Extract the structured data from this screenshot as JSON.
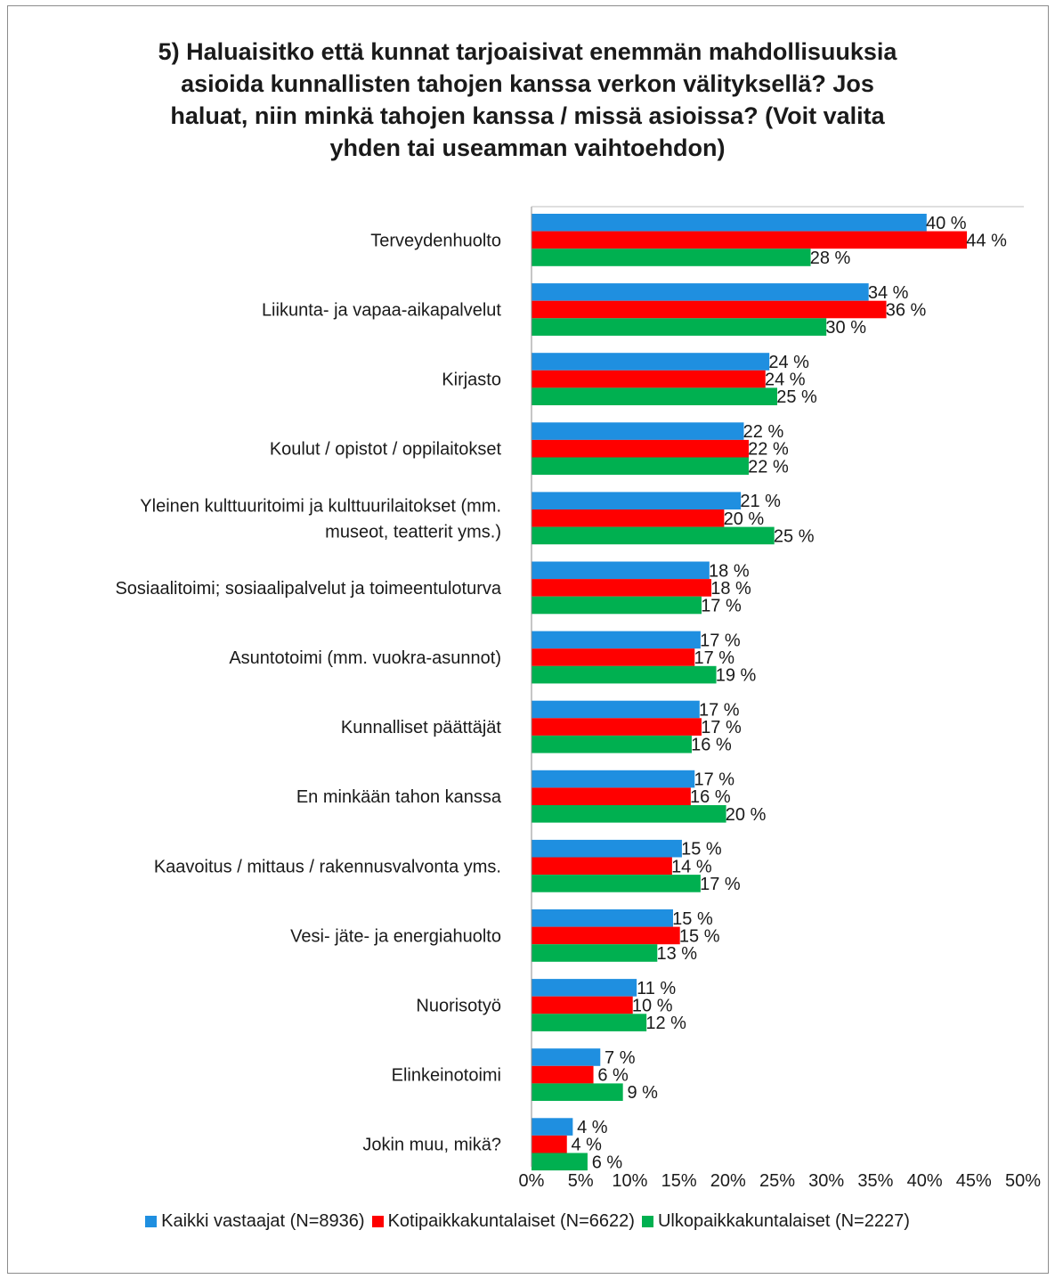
{
  "chart_data": {
    "type": "bar",
    "orientation": "horizontal",
    "title": "5) Haluaisitko että kunnat tarjoaisivat enemmän mahdollisuuksia asioida kunnallisten tahojen kanssa verkon välityksellä? Jos haluat, niin minkä tahojen kanssa / missä asioissa? (Voit valita yhden tai useamman vaihtoehdon)",
    "title_lines": [
      "5) Haluaisitko että kunnat tarjoaisivat enemmän mahdollisuuksia",
      "asioida kunnallisten tahojen kanssa verkon välityksellä? Jos",
      "haluat, niin minkä tahojen kanssa / missä asioissa? (Voit valita",
      "yhden tai useamman vaihtoehdon)"
    ],
    "categories": [
      [
        "Terveydenhuolto"
      ],
      [
        "Liikunta- ja vapaa-aikapalvelut"
      ],
      [
        "Kirjasto"
      ],
      [
        "Koulut / opistot / oppilaitokset"
      ],
      [
        "Yleinen kulttuuritoimi ja kulttuurilaitokset (mm.",
        "museot, teatterit yms.)"
      ],
      [
        "Sosiaalitoimi; sosiaalipalvelut ja toimeentuloturva"
      ],
      [
        "Asuntotoimi (mm. vuokra-asunnot)"
      ],
      [
        "Kunnalliset päättäjät"
      ],
      [
        "En minkään tahon kanssa"
      ],
      [
        "Kaavoitus / mittaus / rakennusvalvonta yms."
      ],
      [
        "Vesi- jäte- ja energiahuolto"
      ],
      [
        "Nuorisotyö"
      ],
      [
        "Elinkeinotoimi"
      ],
      [
        "Jokin muu, mikä?"
      ]
    ],
    "series": [
      {
        "name": "Kaikki vastaajat (N=8936)",
        "color": "#1f8fe0",
        "values": [
          40,
          34,
          24,
          22,
          21,
          18,
          17,
          17,
          17,
          15,
          15,
          11,
          7,
          4
        ],
        "labels": [
          "40 %",
          "34 %",
          "24 %",
          "22 %",
          "21 %",
          "18 %",
          "17 %",
          "17 %",
          "17 %",
          "15 %",
          "15 %",
          "11 %",
          "7 %",
          "4 %"
        ],
        "bar_values": [
          40.2,
          34.3,
          24.2,
          21.6,
          21.3,
          18.1,
          17.2,
          17.1,
          16.6,
          15.3,
          14.4,
          10.7,
          7.0,
          4.2
        ]
      },
      {
        "name": "Kotipaikkakuntalaiset (N=6622)",
        "color": "#ff0000",
        "values": [
          44,
          36,
          24,
          22,
          20,
          18,
          17,
          17,
          16,
          14,
          15,
          10,
          6,
          4
        ],
        "labels": [
          "44 %",
          "36 %",
          "24 %",
          "22 %",
          "20 %",
          "18 %",
          "17 %",
          "17 %",
          "16 %",
          "14 %",
          "15 %",
          "10 %",
          "6 %",
          "4 %"
        ],
        "bar_values": [
          44.3,
          36.1,
          23.8,
          22.1,
          19.6,
          18.3,
          16.6,
          17.3,
          16.2,
          14.3,
          15.1,
          10.3,
          6.3,
          3.6
        ]
      },
      {
        "name": "Ulkopaikkakuntalaiset (N=2227)",
        "color": "#00b050",
        "values": [
          28,
          30,
          25,
          22,
          25,
          17,
          19,
          16,
          20,
          17,
          13,
          12,
          9,
          6
        ],
        "labels": [
          "28 %",
          "30 %",
          "25 %",
          "22 %",
          "25 %",
          "17 %",
          "19 %",
          "16 %",
          "20 %",
          "17 %",
          "13 %",
          "12 %",
          "9 %",
          "6 %"
        ],
        "bar_values": [
          28.4,
          30.0,
          25.0,
          22.1,
          24.7,
          17.3,
          18.8,
          16.3,
          19.8,
          17.2,
          12.8,
          11.7,
          9.3,
          5.7
        ]
      }
    ],
    "x_ticks": [
      "0%",
      "5%",
      "10%",
      "15%",
      "20%",
      "25%",
      "30%",
      "35%",
      "40%",
      "45%",
      "50%"
    ],
    "xlim": [
      0,
      50
    ],
    "xlabel": "",
    "ylabel": "",
    "grid": false,
    "legend_position": "bottom"
  }
}
